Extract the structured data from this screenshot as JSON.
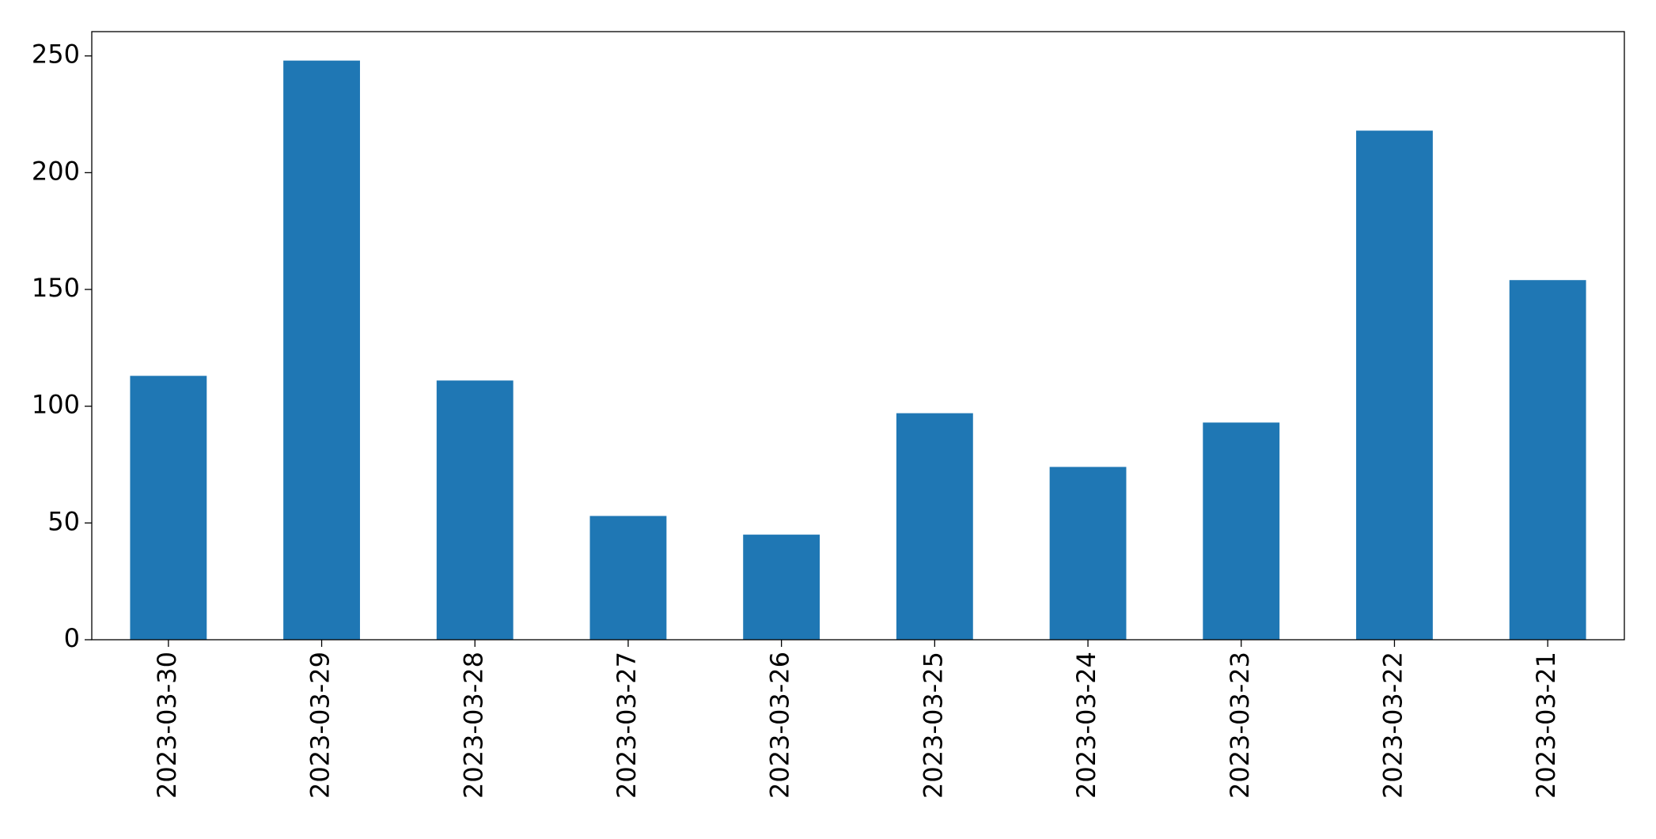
{
  "chart_data": {
    "type": "bar",
    "categories": [
      "2023-03-30",
      "2023-03-29",
      "2023-03-28",
      "2023-03-27",
      "2023-03-26",
      "2023-03-25",
      "2023-03-24",
      "2023-03-23",
      "2023-03-22",
      "2023-03-21"
    ],
    "values": [
      113,
      248,
      111,
      53,
      45,
      97,
      74,
      93,
      218,
      154
    ],
    "color": "#1f77b4",
    "ylim": [
      0,
      260.4
    ],
    "yticks": [
      0,
      50,
      100,
      150,
      200,
      250
    ],
    "grid": false
  }
}
